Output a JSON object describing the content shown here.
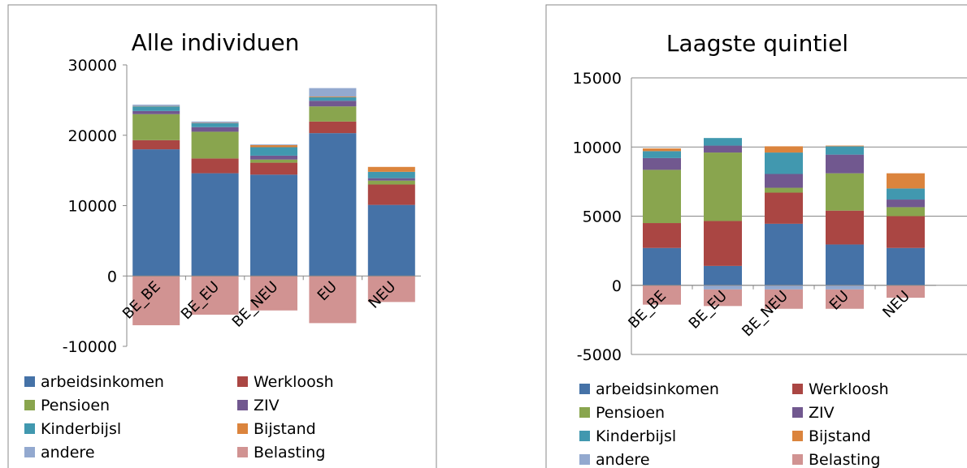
{
  "chart_data": [
    {
      "type": "stacked_bar",
      "title": "Alle individuen",
      "categories": [
        "BE_BE",
        "BE_EU",
        "BE_NEU",
        "EU",
        "NEU"
      ],
      "ylim": [
        -10000,
        30000
      ],
      "yticks": [
        -10000,
        0,
        10000,
        20000,
        30000
      ],
      "grid": false,
      "series": [
        {
          "name": "arbeidsinkomen",
          "color": "#4572a7",
          "values": [
            18000,
            14600,
            14400,
            20300,
            10100
          ]
        },
        {
          "name": "Werkloosh",
          "color": "#aa4643",
          "values": [
            1300,
            2100,
            1700,
            1650,
            2900
          ]
        },
        {
          "name": "Pensioen",
          "color": "#89a54e",
          "values": [
            3700,
            3800,
            450,
            2150,
            550
          ]
        },
        {
          "name": "ZIV",
          "color": "#71588f",
          "values": [
            450,
            650,
            550,
            800,
            350
          ]
        },
        {
          "name": "Kinderbijsl",
          "color": "#4198af",
          "values": [
            650,
            550,
            1200,
            500,
            900
          ]
        },
        {
          "name": "Bijstand",
          "color": "#db843d",
          "values": [
            50,
            50,
            300,
            100,
            700
          ]
        },
        {
          "name": "andere",
          "color": "#93a9cf",
          "values": [
            200,
            200,
            100,
            1200,
            0
          ]
        },
        {
          "name": "Belasting",
          "color": "#d19392",
          "values": [
            -7000,
            -5500,
            -4900,
            -6700,
            -3700
          ]
        }
      ]
    },
    {
      "type": "stacked_bar",
      "title": "Laagste quintiel",
      "categories": [
        "BE_BE",
        "BE_EU",
        "BE_NEU",
        "EU",
        "NEU"
      ],
      "ylim": [
        -5000,
        15000
      ],
      "yticks": [
        -5000,
        0,
        5000,
        10000,
        15000
      ],
      "grid": true,
      "series": [
        {
          "name": "arbeidsinkomen",
          "color": "#4572a7",
          "values": [
            2700,
            1400,
            4450,
            2950,
            2700
          ]
        },
        {
          "name": "Werkloosh",
          "color": "#aa4643",
          "values": [
            1800,
            3250,
            2250,
            2450,
            2300
          ]
        },
        {
          "name": "Pensioen",
          "color": "#89a54e",
          "values": [
            3850,
            4950,
            350,
            2700,
            650
          ]
        },
        {
          "name": "ZIV",
          "color": "#71588f",
          "values": [
            850,
            500,
            1000,
            1350,
            550
          ]
        },
        {
          "name": "Kinderbijsl",
          "color": "#4198af",
          "values": [
            500,
            550,
            1550,
            600,
            800
          ]
        },
        {
          "name": "Bijstand",
          "color": "#db843d",
          "values": [
            200,
            0,
            450,
            50,
            1100
          ]
        },
        {
          "name": "andere",
          "color": "#93a9cf",
          "values": [
            0,
            -300,
            -300,
            -300,
            0
          ]
        },
        {
          "name": "Belasting",
          "color": "#d19392",
          "values": [
            -1400,
            -1200,
            -1400,
            -1400,
            -900
          ]
        }
      ]
    }
  ]
}
